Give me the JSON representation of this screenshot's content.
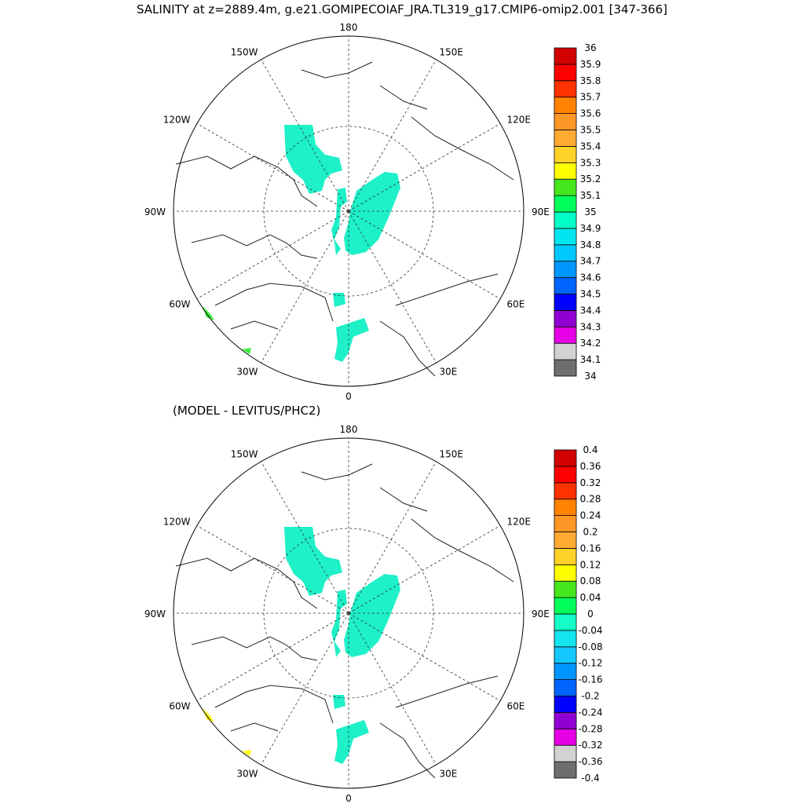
{
  "title": "SALINITY at z=2889.4m, g.e21.GOMIPECOIAF_JRA.TL319_g17.CMIP6-omip2.001 [347-366]",
  "subtitle": "(MODEL - LEVITUS/PHC2)",
  "longitude_labels": [
    "180",
    "150E",
    "120E",
    "90E",
    "60E",
    "30E",
    "0",
    "30W",
    "60W",
    "90W",
    "120W",
    "150W"
  ],
  "top_colorbar": {
    "colors": [
      "#6e6e6e",
      "#d2d2d2",
      "#e600e6",
      "#9100d2",
      "#0000ff",
      "#0064ff",
      "#0096ff",
      "#00c8ff",
      "#00e6f0",
      "#00ffc8",
      "#00ff5a",
      "#46e61e",
      "#ffff00",
      "#ffd228",
      "#ffaa32",
      "#ff9628",
      "#ff8200",
      "#ff3200",
      "#ff0000",
      "#d20000"
    ],
    "labels": [
      "34",
      "34.1",
      "34.2",
      "34.3",
      "34.4",
      "34.5",
      "34.6",
      "34.7",
      "34.8",
      "34.9",
      "35",
      "35.1",
      "35.2",
      "35.3",
      "35.4",
      "35.5",
      "35.6",
      "35.7",
      "35.8",
      "35.9",
      "36"
    ]
  },
  "bottom_colorbar": {
    "colors": [
      "#6e6e6e",
      "#d2d2d2",
      "#e600e6",
      "#9100d2",
      "#0000ff",
      "#0064ff",
      "#0096ff",
      "#14c8ff",
      "#14e6f0",
      "#14ffc8",
      "#00ff5a",
      "#46e61e",
      "#ffff00",
      "#ffd228",
      "#ffaa32",
      "#ff9628",
      "#ff8200",
      "#ff3200",
      "#ff0000",
      "#d20000"
    ],
    "labels": [
      "-0.4",
      "-0.36",
      "-0.32",
      "-0.28",
      "-0.24",
      "-0.2",
      "-0.16",
      "-0.12",
      "-0.08",
      "-0.04",
      "0",
      "0.04",
      "0.08",
      "0.12",
      "0.16",
      "0.2",
      "0.24",
      "0.28",
      "0.32",
      "0.36",
      "0.4"
    ]
  },
  "field_color": "#1ef0c8",
  "difference_high_color": "#ffff14",
  "top_edge_color": "#3cf03c"
}
